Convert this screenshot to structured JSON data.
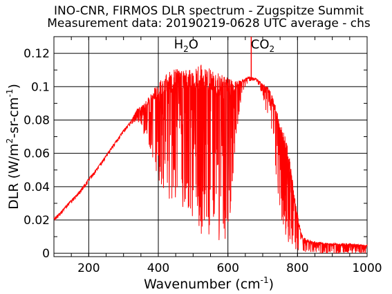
{
  "chart_data": {
    "type": "line",
    "title_lines": [
      "INO-CNR, FIRMOS DLR spectrum - Zugspitze Summit",
      "Measurement data: 20190219-0628 UTC average - chs"
    ],
    "xlabel": "Wavenumber (cm-1)",
    "xlabel_parts": {
      "base": "Wavenumber (cm",
      "sup": "-1",
      "close": ")"
    },
    "ylabel": "DLR (W/m2-sr-cm-1)",
    "ylabel_parts": {
      "base": "DLR (W/m",
      "sup1": "2",
      "mid": "-sr-cm",
      "sup2": "-1",
      "close": ")"
    },
    "xlim": [
      100,
      1000
    ],
    "ylim": [
      -0.002,
      0.13
    ],
    "x_ticks": [
      200,
      400,
      600,
      800,
      1000
    ],
    "x_tick_labels": [
      "200",
      "400",
      "600",
      "800",
      "1000"
    ],
    "y_ticks": [
      0,
      0.02,
      0.04,
      0.06,
      0.08,
      0.1,
      0.12
    ],
    "y_tick_labels": [
      "0",
      "0.02",
      "0.04",
      "0.06",
      "0.08",
      "0.1",
      "0.12"
    ],
    "grid": true,
    "annotations": [
      {
        "text": "H",
        "sub": "2",
        "tail": "O",
        "x": 480,
        "y": 0.123
      },
      {
        "text": "CO",
        "sub": "2",
        "tail": "",
        "x": 700,
        "y": 0.123
      }
    ],
    "series": [
      {
        "color": "#ff0000",
        "envelope_upper": [
          [
            100,
            0.021
          ],
          [
            120,
            0.025
          ],
          [
            140,
            0.03
          ],
          [
            160,
            0.034
          ],
          [
            180,
            0.039
          ],
          [
            200,
            0.045
          ],
          [
            220,
            0.05
          ],
          [
            240,
            0.056
          ],
          [
            260,
            0.062
          ],
          [
            280,
            0.068
          ],
          [
            300,
            0.074
          ],
          [
            320,
            0.079
          ],
          [
            340,
            0.087
          ],
          [
            360,
            0.09
          ],
          [
            380,
            0.096
          ],
          [
            400,
            0.103
          ],
          [
            420,
            0.107
          ],
          [
            440,
            0.11
          ],
          [
            460,
            0.111
          ],
          [
            480,
            0.11
          ],
          [
            500,
            0.111
          ],
          [
            520,
            0.114
          ],
          [
            540,
            0.112
          ],
          [
            560,
            0.109
          ],
          [
            580,
            0.108
          ],
          [
            600,
            0.106
          ],
          [
            620,
            0.104
          ],
          [
            640,
            0.104
          ],
          [
            660,
            0.106
          ],
          [
            680,
            0.105
          ],
          [
            700,
            0.102
          ],
          [
            715,
            0.1
          ],
          [
            725,
            0.096
          ],
          [
            735,
            0.09
          ],
          [
            745,
            0.083
          ],
          [
            755,
            0.075
          ],
          [
            765,
            0.07
          ],
          [
            775,
            0.06
          ],
          [
            785,
            0.045
          ],
          [
            795,
            0.03
          ],
          [
            805,
            0.018
          ],
          [
            815,
            0.01
          ],
          [
            830,
            0.008
          ],
          [
            850,
            0.007
          ],
          [
            900,
            0.006
          ],
          [
            950,
            0.006
          ],
          [
            1000,
            0.005
          ]
        ],
        "envelope_lower": [
          [
            100,
            0.019
          ],
          [
            120,
            0.023
          ],
          [
            140,
            0.028
          ],
          [
            160,
            0.032
          ],
          [
            180,
            0.037
          ],
          [
            200,
            0.043
          ],
          [
            220,
            0.048
          ],
          [
            240,
            0.054
          ],
          [
            260,
            0.06
          ],
          [
            280,
            0.066
          ],
          [
            300,
            0.072
          ],
          [
            320,
            0.077
          ],
          [
            340,
            0.08
          ],
          [
            360,
            0.07
          ],
          [
            380,
            0.06
          ],
          [
            400,
            0.04
          ],
          [
            420,
            0.035
          ],
          [
            440,
            0.03
          ],
          [
            460,
            0.028
          ],
          [
            480,
            0.02
          ],
          [
            500,
            0.015
          ],
          [
            520,
            0.012
          ],
          [
            540,
            0.01
          ],
          [
            560,
            0.008
          ],
          [
            580,
            0.007
          ],
          [
            600,
            0.006
          ],
          [
            620,
            0.06
          ],
          [
            640,
            0.096
          ],
          [
            660,
            0.103
          ],
          [
            680,
            0.104
          ],
          [
            700,
            0.095
          ],
          [
            715,
            0.08
          ],
          [
            725,
            0.06
          ],
          [
            735,
            0.05
          ],
          [
            745,
            0.03
          ],
          [
            755,
            0.02
          ],
          [
            765,
            0.01
          ],
          [
            775,
            0.005
          ],
          [
            785,
            0.003
          ],
          [
            795,
            0.002
          ],
          [
            805,
            0.001
          ],
          [
            815,
            0.001
          ],
          [
            830,
            0.0
          ],
          [
            850,
            0.0
          ],
          [
            900,
            0.0
          ],
          [
            950,
            0.0
          ],
          [
            1000,
            0.0
          ]
        ],
        "spike": {
          "x": 667,
          "y_min": 0.104,
          "y_max": 0.13
        }
      }
    ]
  }
}
